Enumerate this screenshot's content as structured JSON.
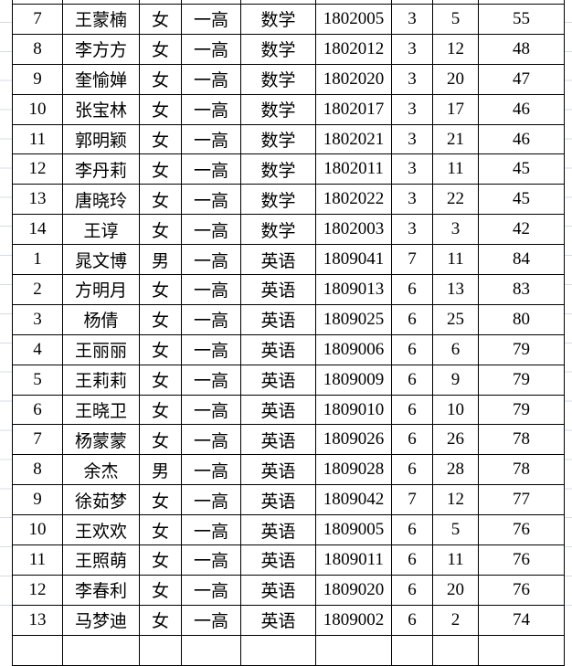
{
  "app": {
    "type": "spreadsheet-score-list"
  },
  "colors": {
    "background": "#ffffff",
    "cell_border": "#000000",
    "text": "#000000",
    "margin_gridline": "#d4dce8"
  },
  "table": {
    "column_semantics": [
      "rank",
      "name",
      "gender",
      "school",
      "subject",
      "student-id",
      "number-1",
      "number-2",
      "score"
    ],
    "rows": [
      [
        "7",
        "王蒙楠",
        "女",
        "一高",
        "数学",
        "1802005",
        "3",
        "5",
        "55"
      ],
      [
        "8",
        "李方方",
        "女",
        "一高",
        "数学",
        "1802012",
        "3",
        "12",
        "48"
      ],
      [
        "9",
        "奎愉婵",
        "女",
        "一高",
        "数学",
        "1802020",
        "3",
        "20",
        "47"
      ],
      [
        "10",
        "张宝林",
        "女",
        "一高",
        "数学",
        "1802017",
        "3",
        "17",
        "46"
      ],
      [
        "11",
        "郭明颖",
        "女",
        "一高",
        "数学",
        "1802021",
        "3",
        "21",
        "46"
      ],
      [
        "12",
        "李丹莉",
        "女",
        "一高",
        "数学",
        "1802011",
        "3",
        "11",
        "45"
      ],
      [
        "13",
        "唐晓玲",
        "女",
        "一高",
        "数学",
        "1802022",
        "3",
        "22",
        "45"
      ],
      [
        "14",
        "王谆",
        "女",
        "一高",
        "数学",
        "1802003",
        "3",
        "3",
        "42"
      ],
      [
        "1",
        "晁文博",
        "男",
        "一高",
        "英语",
        "1809041",
        "7",
        "11",
        "84"
      ],
      [
        "2",
        "方明月",
        "女",
        "一高",
        "英语",
        "1809013",
        "6",
        "13",
        "83"
      ],
      [
        "3",
        "杨倩",
        "女",
        "一高",
        "英语",
        "1809025",
        "6",
        "25",
        "80"
      ],
      [
        "4",
        "王丽丽",
        "女",
        "一高",
        "英语",
        "1809006",
        "6",
        "6",
        "79"
      ],
      [
        "5",
        "王莉莉",
        "女",
        "一高",
        "英语",
        "1809009",
        "6",
        "9",
        "79"
      ],
      [
        "6",
        "王晓卫",
        "女",
        "一高",
        "英语",
        "1809010",
        "6",
        "10",
        "79"
      ],
      [
        "7",
        "杨蒙蒙",
        "女",
        "一高",
        "英语",
        "1809026",
        "6",
        "26",
        "78"
      ],
      [
        "8",
        "余杰",
        "男",
        "一高",
        "英语",
        "1809028",
        "6",
        "28",
        "78"
      ],
      [
        "9",
        "徐茹梦",
        "女",
        "一高",
        "英语",
        "1809042",
        "7",
        "12",
        "77"
      ],
      [
        "10",
        "王欢欢",
        "女",
        "一高",
        "英语",
        "1809005",
        "6",
        "5",
        "76"
      ],
      [
        "11",
        "王照萌",
        "女",
        "一高",
        "英语",
        "1809011",
        "6",
        "11",
        "76"
      ],
      [
        "12",
        "李春利",
        "女",
        "一高",
        "英语",
        "1809020",
        "6",
        "20",
        "76"
      ],
      [
        "13",
        "马梦迪",
        "女",
        "一高",
        "英语",
        "1809002",
        "6",
        "2",
        "74"
      ]
    ]
  }
}
